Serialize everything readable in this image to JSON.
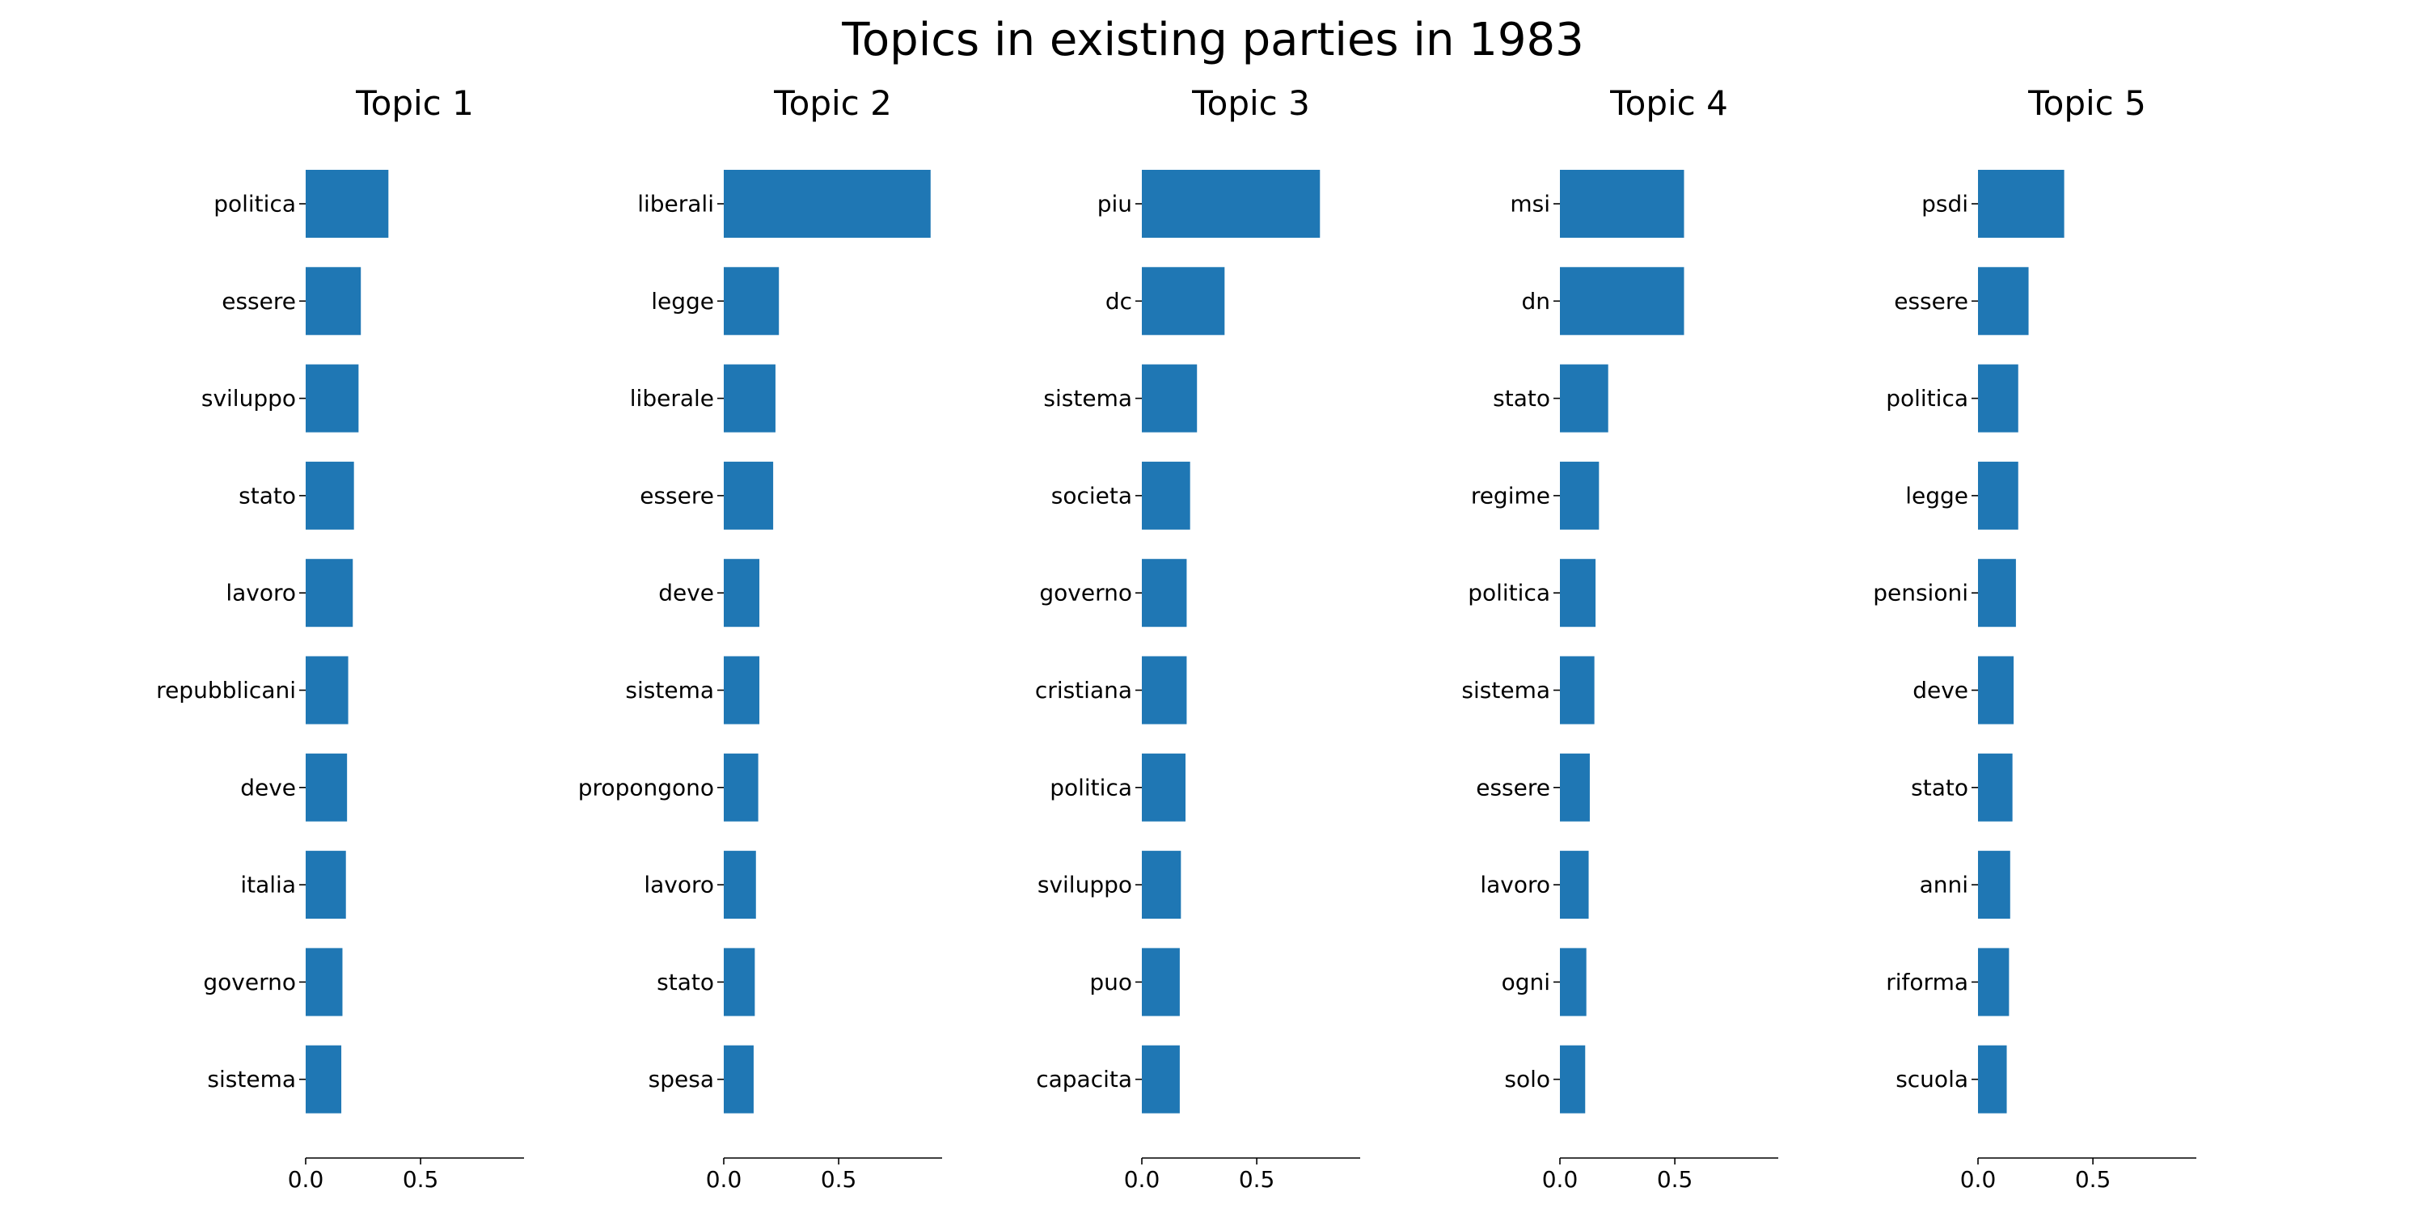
{
  "chart_data": {
    "type": "bar",
    "title": "Topics in existing parties in 1983",
    "bar_color": "#1f77b4",
    "x_ticks": [
      0.0,
      0.5
    ],
    "x_tick_labels": [
      "0.0",
      "0.5"
    ],
    "xlim": [
      0,
      0.95
    ],
    "orientation": "horizontal",
    "panels": [
      {
        "title": "Topic 1",
        "categories": [
          "politica",
          "essere",
          "sviluppo",
          "stato",
          "lavoro",
          "repubblicani",
          "deve",
          "italia",
          "governo",
          "sistema"
        ],
        "values": [
          0.36,
          0.24,
          0.23,
          0.21,
          0.205,
          0.185,
          0.18,
          0.175,
          0.16,
          0.155
        ]
      },
      {
        "title": "Topic 2",
        "categories": [
          "liberali",
          "legge",
          "liberale",
          "essere",
          "deve",
          "sistema",
          "propongono",
          "lavoro",
          "stato",
          "spesa"
        ],
        "values": [
          0.9,
          0.24,
          0.225,
          0.215,
          0.155,
          0.155,
          0.15,
          0.14,
          0.135,
          0.13
        ]
      },
      {
        "title": "Topic 3",
        "categories": [
          "piu",
          "dc",
          "sistema",
          "societa",
          "governo",
          "cristiana",
          "politica",
          "sviluppo",
          "puo",
          "capacita"
        ],
        "values": [
          0.775,
          0.36,
          0.24,
          0.21,
          0.195,
          0.195,
          0.19,
          0.17,
          0.165,
          0.165
        ]
      },
      {
        "title": "Topic 4",
        "categories": [
          "msi",
          "dn",
          "stato",
          "regime",
          "politica",
          "sistema",
          "essere",
          "lavoro",
          "ogni",
          "solo"
        ],
        "values": [
          0.54,
          0.54,
          0.21,
          0.17,
          0.155,
          0.15,
          0.13,
          0.125,
          0.115,
          0.11
        ]
      },
      {
        "title": "Topic 5",
        "categories": [
          "psdi",
          "essere",
          "politica",
          "legge",
          "pensioni",
          "deve",
          "stato",
          "anni",
          "riforma",
          "scuola"
        ],
        "values": [
          0.375,
          0.22,
          0.175,
          0.175,
          0.165,
          0.155,
          0.15,
          0.14,
          0.135,
          0.125
        ]
      }
    ]
  }
}
